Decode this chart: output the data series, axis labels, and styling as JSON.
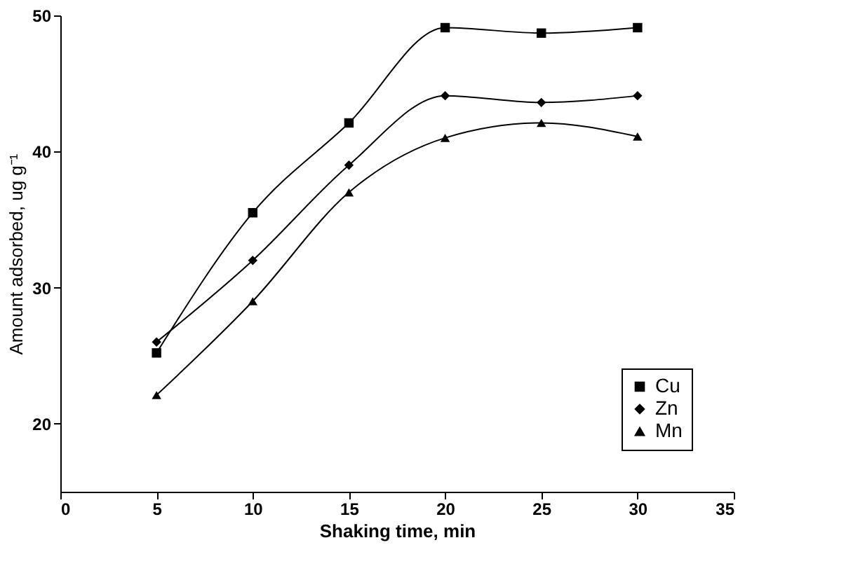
{
  "chart_data": {
    "type": "line",
    "xlabel": "Shaking time, min",
    "ylabel": "Amount adsorbed, ug g⁻¹",
    "x": [
      5,
      10,
      15,
      20,
      25,
      30
    ],
    "series": [
      {
        "name": "Cu",
        "color": "#000000",
        "marker": "square",
        "values": [
          25.2,
          35.5,
          42.1,
          49.1,
          48.7,
          49.1
        ]
      },
      {
        "name": "Zn",
        "color": "#000000",
        "marker": "diamond",
        "values": [
          26.0,
          32.0,
          39.0,
          44.1,
          43.6,
          44.1
        ]
      },
      {
        "name": "Mn",
        "color": "#000000",
        "marker": "triangle",
        "values": [
          22.1,
          29.0,
          37.0,
          41.0,
          42.1,
          41.1
        ]
      }
    ],
    "xlim": [
      0,
      35
    ],
    "xticks": [
      0,
      5,
      10,
      15,
      20,
      25,
      30,
      35
    ],
    "ylim": [
      15,
      50
    ],
    "yticks": [
      20,
      30,
      40,
      50
    ],
    "grid": false,
    "legend": "bottom right",
    "line_style": "solid"
  }
}
